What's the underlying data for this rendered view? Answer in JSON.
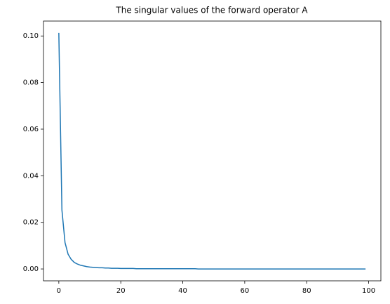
{
  "chart_data": {
    "type": "line",
    "title": "The singular values of the forward operator A",
    "x": [
      0,
      1,
      2,
      3,
      4,
      5,
      6,
      7,
      8,
      9,
      10,
      11,
      12,
      13,
      14,
      15,
      16,
      17,
      18,
      19,
      20,
      21,
      22,
      23,
      24,
      25,
      26,
      27,
      28,
      29,
      30,
      31,
      32,
      33,
      34,
      35,
      36,
      37,
      38,
      39,
      40,
      41,
      42,
      43,
      44,
      45,
      46,
      47,
      48,
      49,
      50,
      51,
      52,
      53,
      54,
      55,
      56,
      57,
      58,
      59,
      60,
      61,
      62,
      63,
      64,
      65,
      66,
      67,
      68,
      69,
      70,
      71,
      72,
      73,
      74,
      75,
      76,
      77,
      78,
      79,
      80,
      81,
      82,
      83,
      84,
      85,
      86,
      87,
      88,
      89,
      90,
      91,
      92,
      93,
      94,
      95,
      96,
      97,
      98,
      99
    ],
    "series": [
      {
        "name": "singular values",
        "color": "#1f77b4",
        "values": [
          0.1013,
          0.0253,
          0.0113,
          0.0063,
          0.0041,
          0.0028,
          0.0021,
          0.0016,
          0.0013,
          0.001,
          0.0008,
          0.0007,
          0.0006,
          0.0005,
          0.0005,
          0.0004,
          0.0004,
          0.0003,
          0.0003,
          0.0003,
          0.0002,
          0.0002,
          0.0002,
          0.0002,
          0.0002,
          0.0001,
          0.0001,
          0.0001,
          0.0001,
          0.0001,
          0.0001,
          0.0001,
          0.0001,
          0.0001,
          0.0001,
          0.0001,
          0.0001,
          0.0001,
          0.0001,
          0.0001,
          0.0001,
          0.0001,
          0.0001,
          0.0001,
          0.0001,
          0,
          0,
          0,
          0,
          0,
          0,
          0,
          0,
          0,
          0,
          0,
          0,
          0,
          0,
          0,
          0,
          0,
          0,
          0,
          0,
          0,
          0,
          0,
          0,
          0,
          0,
          0,
          0,
          0,
          0,
          0,
          0,
          0,
          0,
          0,
          0,
          0,
          0,
          0,
          0,
          0,
          0,
          0,
          0,
          0,
          0,
          0,
          0,
          0,
          0,
          0,
          0,
          0,
          0,
          0
        ]
      }
    ],
    "xlim": [
      -4.95,
      103.95
    ],
    "xticks": [
      0,
      20,
      40,
      60,
      80,
      100
    ],
    "ylim": [
      -0.0051,
      0.1064
    ],
    "yticks": [
      {
        "value": 0,
        "label": "0.00"
      },
      {
        "value": 0.02,
        "label": "0.02"
      },
      {
        "value": 0.04,
        "label": "0.04"
      },
      {
        "value": 0.06,
        "label": "0.06"
      },
      {
        "value": 0.08,
        "label": "0.08"
      },
      {
        "value": 0.1,
        "label": "0.10"
      }
    ],
    "grid": false
  }
}
